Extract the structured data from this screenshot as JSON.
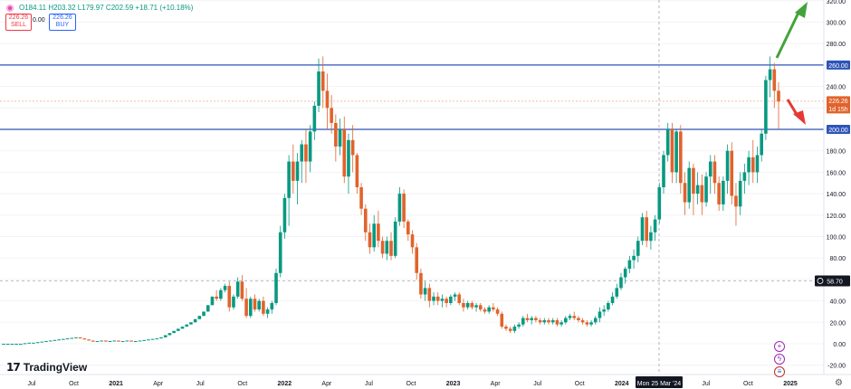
{
  "header": {
    "ohlc_text": "O184.11  H203.32  L179.97  C202.59  +18.71 (+10.18%)",
    "sell_price": "226.26",
    "sell_label": "SELL",
    "spread": "0.00",
    "buy_price": "226.26",
    "buy_label": "BUY"
  },
  "brand": {
    "logo_mark": "17",
    "name": "TradingView"
  },
  "crosshair": {
    "date_label": "Mon 25 Mar '24",
    "price_label": "58.70"
  },
  "colors": {
    "up": "#089981",
    "down": "#e0632c",
    "level_line": "#2d54b8",
    "last_price": "#e0632c"
  },
  "chart_data": {
    "type": "candlestick",
    "title": "",
    "x_axis_labels": [
      "Jul",
      "Oct",
      "2021",
      "Apr",
      "Jul",
      "Oct",
      "2022",
      "Apr",
      "Jul",
      "Oct",
      "2023",
      "Apr",
      "Jul",
      "Oct",
      "2024",
      "Apr",
      "Jul",
      "Oct",
      "2025"
    ],
    "y_axis": {
      "min": -20,
      "max": 320,
      "ticks": [
        -20,
        0,
        20,
        40,
        60,
        80,
        100,
        120,
        140,
        160,
        180,
        200,
        220,
        240,
        260,
        280,
        300,
        320
      ],
      "position": "right"
    },
    "last_price": 226.26,
    "last_price_countdown": "1d 15h",
    "horizontal_levels": [
      260,
      200
    ],
    "crosshair_price": 58.7,
    "arrows": [
      {
        "direction": "up",
        "color": "#43a33b"
      },
      {
        "direction": "down",
        "color": "#e53935"
      }
    ],
    "candles": [
      [
        0,
        0,
        0,
        0
      ],
      [
        0,
        0,
        0,
        0
      ],
      [
        0,
        0,
        0,
        0
      ],
      [
        0,
        0,
        0,
        0
      ],
      [
        0,
        0,
        0,
        0
      ],
      [
        0,
        0.5,
        0,
        0.5
      ],
      [
        0.5,
        1,
        0.5,
        1
      ],
      [
        1,
        1,
        1,
        1
      ],
      [
        1,
        1.5,
        1,
        1.5
      ],
      [
        1.5,
        2,
        1.5,
        2
      ],
      [
        2,
        2.5,
        2,
        2.5
      ],
      [
        2.5,
        3,
        2.5,
        3
      ],
      [
        3,
        3.5,
        3,
        3.5
      ],
      [
        3.5,
        4,
        3.5,
        4
      ],
      [
        4,
        4.5,
        4,
        4.5
      ],
      [
        4.5,
        5,
        4.5,
        5
      ],
      [
        5,
        5.5,
        5,
        5.5
      ],
      [
        5.5,
        6,
        5.5,
        6
      ],
      [
        6,
        6,
        5,
        5
      ],
      [
        5,
        5,
        4,
        4
      ],
      [
        4,
        4,
        3,
        3
      ],
      [
        3,
        3,
        2,
        2
      ],
      [
        2,
        2.5,
        2,
        2.5
      ],
      [
        2.5,
        3,
        2.5,
        3
      ],
      [
        3,
        3,
        2,
        2
      ],
      [
        2,
        2.5,
        2,
        2.5
      ],
      [
        2.5,
        3,
        2.5,
        3
      ],
      [
        3,
        3,
        2,
        2
      ],
      [
        2,
        2.5,
        2,
        2.5
      ],
      [
        2.5,
        3,
        2.5,
        3
      ],
      [
        3,
        3,
        2,
        2
      ],
      [
        2,
        2.5,
        2,
        2.5
      ],
      [
        2.5,
        3,
        2.5,
        3
      ],
      [
        3,
        3.5,
        3,
        3.5
      ],
      [
        3.5,
        4,
        3.5,
        4
      ],
      [
        4,
        4.5,
        4,
        4.5
      ],
      [
        4.5,
        5,
        4.5,
        5
      ],
      [
        5,
        6,
        5,
        6
      ],
      [
        6,
        8,
        6,
        8
      ],
      [
        8,
        10,
        8,
        10
      ],
      [
        10,
        12,
        10,
        12
      ],
      [
        12,
        14,
        12,
        14
      ],
      [
        14,
        16,
        14,
        16
      ],
      [
        16,
        18,
        16,
        18
      ],
      [
        18,
        20,
        18,
        20
      ],
      [
        20,
        23,
        20,
        23
      ],
      [
        23,
        26,
        23,
        26
      ],
      [
        26,
        30,
        26,
        30
      ],
      [
        30,
        36,
        30,
        36
      ],
      [
        36,
        44,
        36,
        44
      ],
      [
        44,
        50,
        40,
        42
      ],
      [
        42,
        52,
        40,
        50
      ],
      [
        50,
        56,
        48,
        54
      ],
      [
        54,
        58,
        30,
        34
      ],
      [
        34,
        46,
        32,
        44
      ],
      [
        44,
        62,
        42,
        58
      ],
      [
        58,
        64,
        40,
        42
      ],
      [
        42,
        52,
        24,
        26
      ],
      [
        26,
        44,
        24,
        42
      ],
      [
        42,
        46,
        30,
        32
      ],
      [
        32,
        42,
        30,
        40
      ],
      [
        40,
        44,
        26,
        28
      ],
      [
        28,
        34,
        24,
        32
      ],
      [
        32,
        40,
        28,
        38
      ],
      [
        38,
        70,
        36,
        66
      ],
      [
        66,
        110,
        62,
        104
      ],
      [
        104,
        140,
        98,
        136
      ],
      [
        136,
        176,
        110,
        170
      ],
      [
        170,
        186,
        140,
        152
      ],
      [
        152,
        178,
        130,
        170
      ],
      [
        170,
        190,
        150,
        186
      ],
      [
        186,
        200,
        150,
        170
      ],
      [
        170,
        204,
        160,
        198
      ],
      [
        198,
        226,
        190,
        222
      ],
      [
        222,
        266,
        216,
        254
      ],
      [
        254,
        268,
        220,
        236
      ],
      [
        236,
        252,
        200,
        220
      ],
      [
        220,
        232,
        196,
        206
      ],
      [
        206,
        214,
        170,
        184
      ],
      [
        184,
        210,
        176,
        200
      ],
      [
        200,
        212,
        150,
        156
      ],
      [
        156,
        196,
        140,
        190
      ],
      [
        190,
        204,
        160,
        176
      ],
      [
        176,
        178,
        140,
        146
      ],
      [
        146,
        150,
        120,
        126
      ],
      [
        126,
        130,
        96,
        104
      ],
      [
        104,
        112,
        84,
        90
      ],
      [
        90,
        120,
        86,
        112
      ],
      [
        112,
        124,
        90,
        96
      ],
      [
        96,
        100,
        80,
        84
      ],
      [
        84,
        100,
        78,
        96
      ],
      [
        96,
        104,
        78,
        82
      ],
      [
        82,
        118,
        80,
        114
      ],
      [
        114,
        146,
        110,
        140
      ],
      [
        140,
        144,
        108,
        114
      ],
      [
        114,
        116,
        96,
        102
      ],
      [
        102,
        106,
        84,
        90
      ],
      [
        90,
        94,
        60,
        66
      ],
      [
        66,
        70,
        42,
        46
      ],
      [
        46,
        58,
        40,
        52
      ],
      [
        52,
        56,
        34,
        40
      ],
      [
        40,
        48,
        36,
        44
      ],
      [
        44,
        48,
        36,
        40
      ],
      [
        40,
        46,
        34,
        42
      ],
      [
        42,
        44,
        34,
        38
      ],
      [
        38,
        46,
        36,
        44
      ],
      [
        44,
        48,
        40,
        46
      ],
      [
        46,
        48,
        36,
        38
      ],
      [
        38,
        42,
        30,
        34
      ],
      [
        34,
        40,
        32,
        38
      ],
      [
        38,
        40,
        32,
        34
      ],
      [
        34,
        38,
        30,
        36
      ],
      [
        36,
        38,
        30,
        32
      ],
      [
        32,
        34,
        28,
        30
      ],
      [
        30,
        36,
        28,
        34
      ],
      [
        34,
        38,
        30,
        32
      ],
      [
        32,
        34,
        26,
        28
      ],
      [
        28,
        30,
        14,
        16
      ],
      [
        16,
        18,
        12,
        14
      ],
      [
        14,
        16,
        10,
        12
      ],
      [
        12,
        18,
        10,
        16
      ],
      [
        16,
        20,
        14,
        18
      ],
      [
        18,
        26,
        16,
        24
      ],
      [
        24,
        28,
        20,
        22
      ],
      [
        22,
        26,
        18,
        24
      ],
      [
        24,
        26,
        20,
        22
      ],
      [
        22,
        24,
        18,
        20
      ],
      [
        20,
        24,
        18,
        22
      ],
      [
        22,
        24,
        18,
        20
      ],
      [
        20,
        24,
        18,
        22
      ],
      [
        22,
        24,
        16,
        18
      ],
      [
        18,
        22,
        16,
        20
      ],
      [
        20,
        26,
        18,
        24
      ],
      [
        24,
        28,
        22,
        26
      ],
      [
        26,
        30,
        22,
        24
      ],
      [
        24,
        26,
        20,
        22
      ],
      [
        22,
        24,
        18,
        20
      ],
      [
        20,
        22,
        16,
        18
      ],
      [
        18,
        22,
        16,
        20
      ],
      [
        20,
        26,
        18,
        24
      ],
      [
        24,
        34,
        20,
        30
      ],
      [
        30,
        36,
        26,
        32
      ],
      [
        32,
        40,
        30,
        38
      ],
      [
        38,
        48,
        36,
        44
      ],
      [
        44,
        56,
        42,
        52
      ],
      [
        52,
        66,
        50,
        62
      ],
      [
        62,
        72,
        56,
        70
      ],
      [
        70,
        82,
        66,
        78
      ],
      [
        78,
        88,
        70,
        82
      ],
      [
        82,
        100,
        76,
        96
      ],
      [
        96,
        122,
        92,
        118
      ],
      [
        118,
        124,
        90,
        96
      ],
      [
        96,
        110,
        88,
        104
      ],
      [
        104,
        120,
        96,
        116
      ],
      [
        116,
        150,
        112,
        146
      ],
      [
        146,
        180,
        140,
        176
      ],
      [
        176,
        206,
        170,
        200
      ],
      [
        200,
        206,
        150,
        160
      ],
      [
        160,
        200,
        150,
        198
      ],
      [
        198,
        204,
        140,
        150
      ],
      [
        150,
        160,
        120,
        132
      ],
      [
        132,
        170,
        126,
        164
      ],
      [
        164,
        168,
        120,
        140
      ],
      [
        140,
        160,
        130,
        148
      ],
      [
        148,
        158,
        120,
        132
      ],
      [
        132,
        160,
        128,
        156
      ],
      [
        156,
        176,
        140,
        170
      ],
      [
        170,
        176,
        140,
        150
      ],
      [
        150,
        156,
        124,
        130
      ],
      [
        130,
        156,
        124,
        152
      ],
      [
        152,
        186,
        140,
        180
      ],
      [
        180,
        188,
        130,
        138
      ],
      [
        138,
        150,
        110,
        128
      ],
      [
        128,
        160,
        120,
        152
      ],
      [
        152,
        168,
        140,
        160
      ],
      [
        160,
        180,
        148,
        174
      ],
      [
        174,
        190,
        150,
        160
      ],
      [
        160,
        184,
        150,
        176
      ],
      [
        176,
        200,
        170,
        196
      ],
      [
        196,
        250,
        190,
        246
      ],
      [
        246,
        268,
        230,
        256
      ],
      [
        256,
        262,
        220,
        236
      ],
      [
        236,
        244,
        200,
        226
      ]
    ]
  }
}
